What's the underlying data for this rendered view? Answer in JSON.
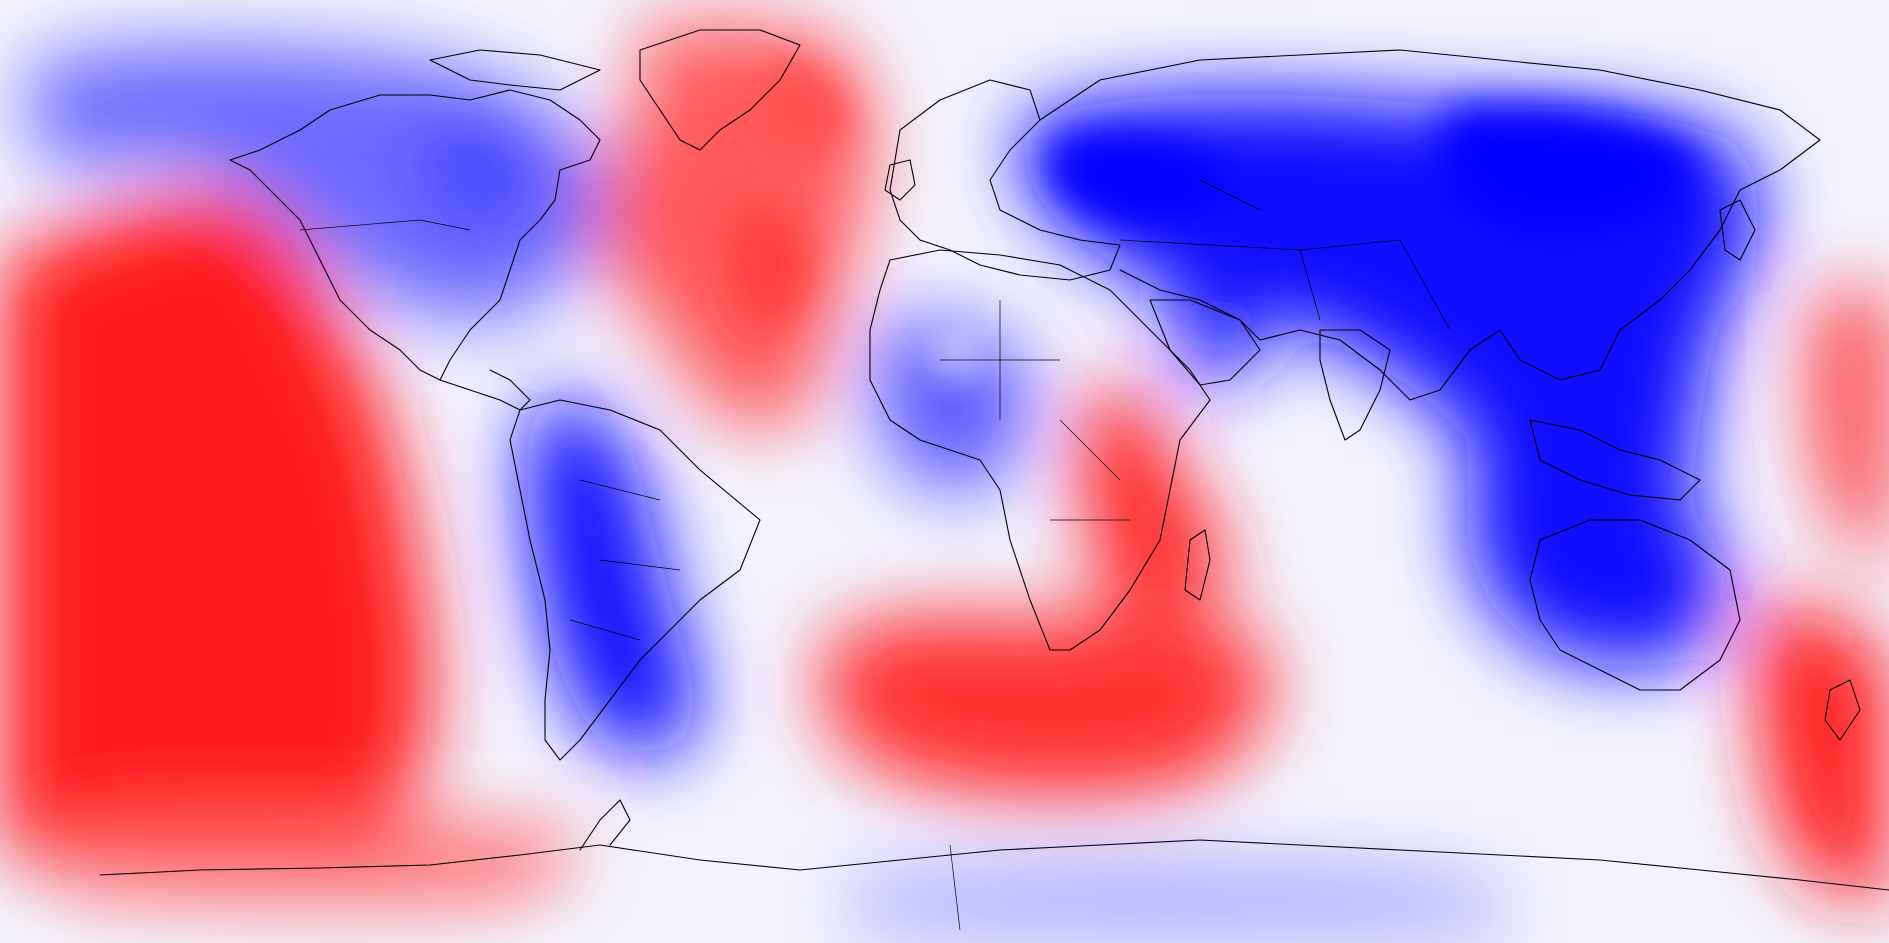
{
  "map": {
    "projection": "equirectangular",
    "longitude_range": [
      -180,
      180
    ],
    "latitude_range": [
      -90,
      90
    ],
    "colormap": {
      "name": "bwr",
      "negative_color": "#0000ff",
      "neutral_color": "#ffffff",
      "positive_color": "#ff0000",
      "levels": 21
    },
    "overlay": "coastlines-and-country-borders",
    "line_color": "#000000"
  }
}
